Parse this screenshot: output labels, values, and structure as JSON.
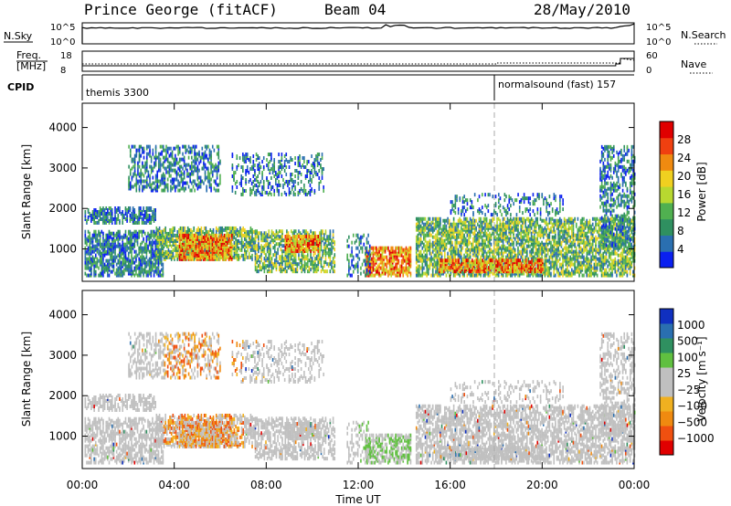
{
  "header": {
    "station": "Prince George (fitACF)",
    "beam": "Beam 04",
    "date": "28/May/2010"
  },
  "strip": {
    "nsky_label": "N.Sky",
    "nsearch_label": "N.Search",
    "nsky_ticks": [
      "10^5",
      "10^0"
    ],
    "nsearch_ticks": [
      "10^5",
      "10^0"
    ],
    "freq_label_1": "Freq.",
    "freq_label_2": "[MHz]",
    "freq_ticks": [
      "18",
      "8"
    ],
    "nave_label": "Nave",
    "nave_ticks": [
      "60",
      "0"
    ],
    "cpid_label": "CPID",
    "cpid_1": "themis 3300",
    "cpid_2": "normalsound (fast) 157"
  },
  "colors": {
    "power": [
      "#0a20f0",
      "#2a6fb0",
      "#2f9060",
      "#50b050",
      "#b8d830",
      "#f0d020",
      "#f08a10",
      "#f04010",
      "#e00000"
    ],
    "velocity": [
      "#e00000",
      "#f05010",
      "#f08a10",
      "#f0b020",
      "#c0c0c0",
      "#c0c0c0",
      "#60c040",
      "#2f9060",
      "#2a6fb0",
      "#1030c0"
    ]
  },
  "chart_data": [
    {
      "type": "heatmap",
      "name": "power",
      "ylabel": "Slant Range [km]",
      "y_ticks": [
        1000,
        2000,
        3000,
        4000
      ],
      "ylim": [
        200,
        4600
      ],
      "colorbar_label": "Power [dB]",
      "colorbar_ticks": [
        "4",
        "8",
        "12",
        "16",
        "20",
        "24",
        "28"
      ],
      "colorbar_range": [
        0,
        32
      ]
    },
    {
      "type": "heatmap",
      "name": "velocity",
      "xlabel": "Time UT",
      "ylabel": "Slant Range [km]",
      "x_ticks": [
        "00:00",
        "04:00",
        "08:00",
        "12:00",
        "16:00",
        "20:00",
        "00:00"
      ],
      "y_ticks": [
        1000,
        2000,
        3000,
        4000
      ],
      "ylim": [
        200,
        4600
      ],
      "colorbar_label": "Velocity [m s⁻¹]",
      "colorbar_ticks": [
        "1000",
        "500",
        "100",
        "25",
        "−25",
        "−100",
        "−500",
        "−1000"
      ]
    }
  ]
}
